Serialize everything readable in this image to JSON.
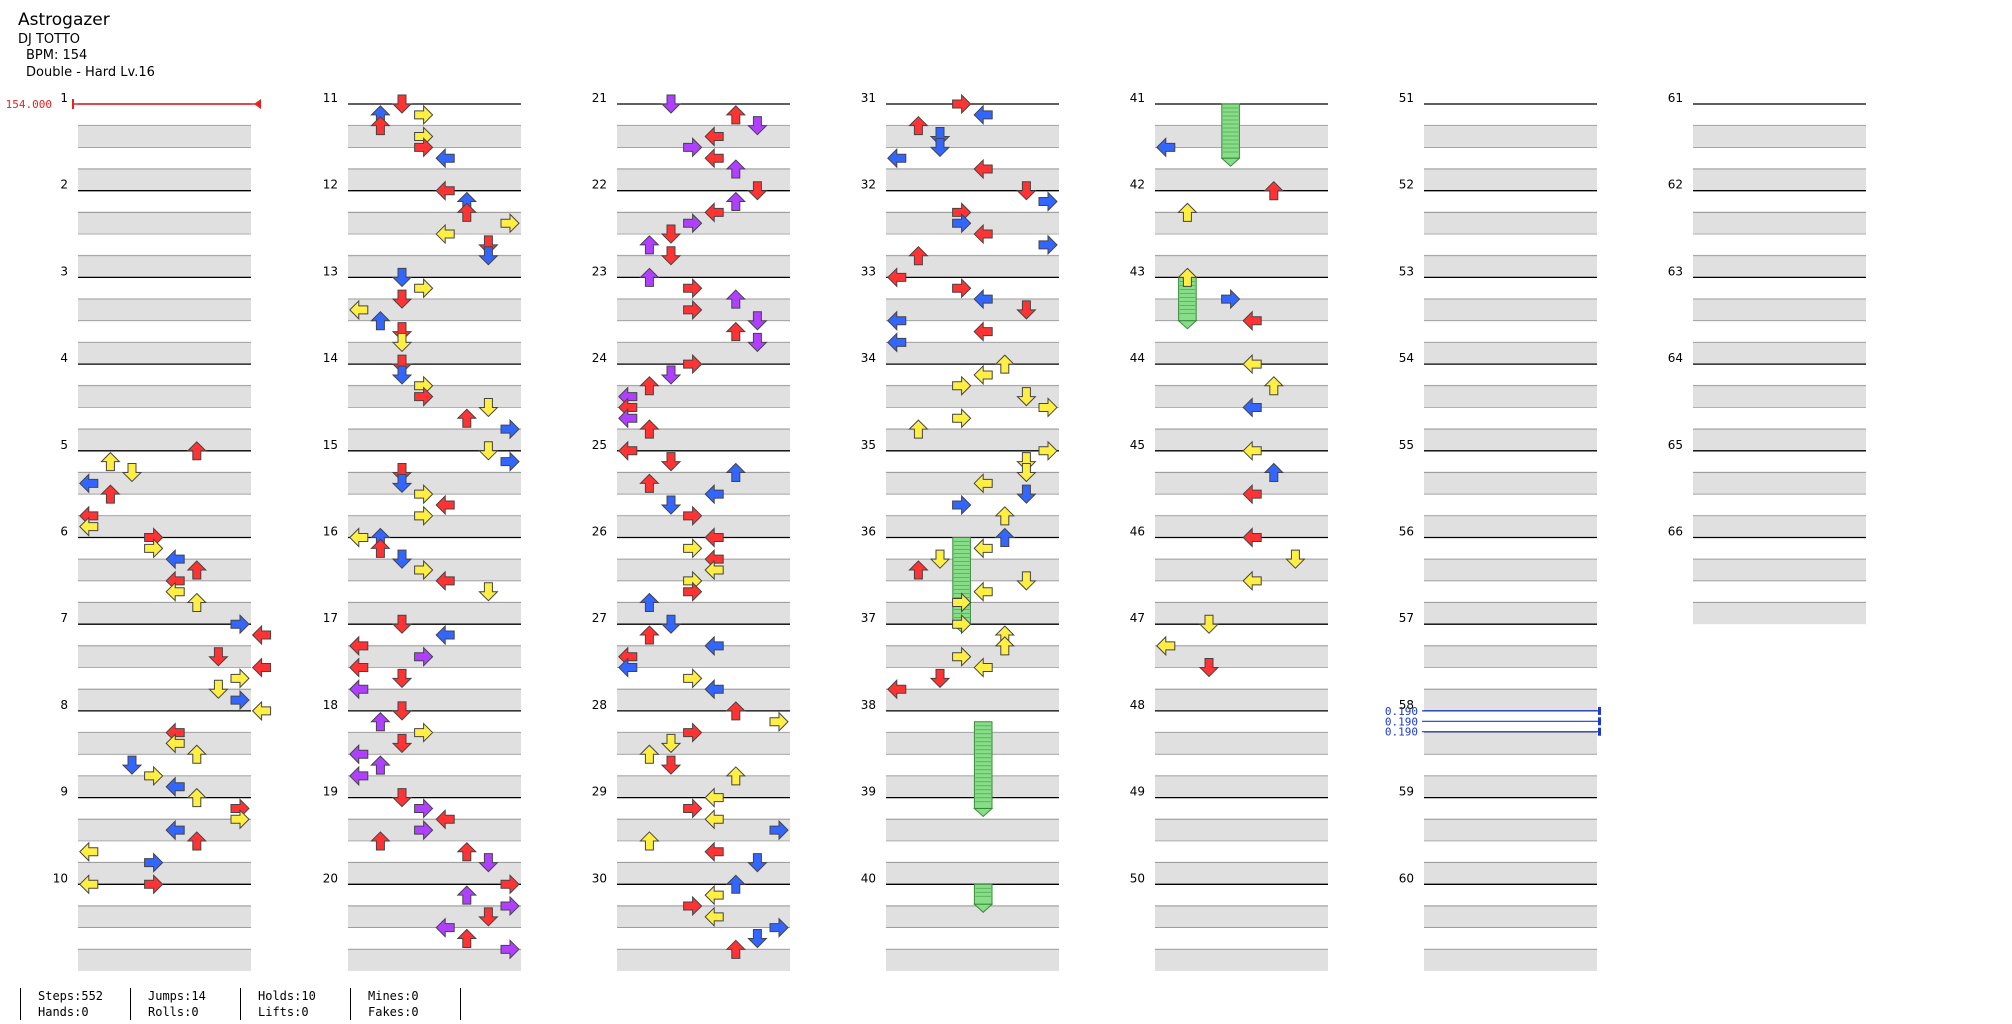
{
  "song": {
    "title": "Astrogazer",
    "artist": "DJ TOTTO",
    "bpm_label": "BPM: 154",
    "chart_label": "Double - Hard  Lv.16"
  },
  "timing": {
    "bpm_marker": "154.000",
    "scroll_values": [
      "0.190",
      "0.190",
      "0.190"
    ],
    "scroll_measure": 58
  },
  "stats": [
    {
      "top": "Steps:552",
      "bottom": "Hands:0"
    },
    {
      "top": "Jumps:14",
      "bottom": "Rolls:0"
    },
    {
      "top": "Holds:10",
      "bottom": "Lifts:0"
    },
    {
      "top": "Mines:0",
      "bottom": "Fakes:0"
    }
  ],
  "colors": {
    "quarter": "#ff3333",
    "eighth": "#3366ff",
    "twelfth": "#b040ff",
    "sixteenth": "#ffee44",
    "hold": "#88dd88",
    "lane_shade": "#e0e0e0",
    "bpm": "#e82020",
    "scroll": "#1a3ad0"
  },
  "measure_numbers": [
    1,
    2,
    3,
    4,
    5,
    6,
    7,
    8,
    9,
    10,
    11,
    12,
    13,
    14,
    15,
    16,
    17,
    18,
    19,
    20,
    21,
    22,
    23,
    24,
    25,
    26,
    27,
    28,
    29,
    30,
    31,
    32,
    33,
    34,
    35,
    36,
    37,
    38,
    39,
    40,
    41,
    42,
    43,
    44,
    45,
    46,
    47,
    48,
    49,
    50,
    51,
    52,
    53,
    54,
    55,
    56,
    57,
    58,
    59,
    60,
    61,
    62,
    63,
    64,
    65,
    66
  ],
  "notes": [
    [
      5,
      0.0,
      5,
      "R"
    ],
    [
      5,
      0.125,
      1,
      "S"
    ],
    [
      5,
      0.25,
      2,
      "S"
    ],
    [
      5,
      0.375,
      0,
      "E"
    ],
    [
      5,
      0.5,
      1,
      "R"
    ],
    [
      5,
      0.75,
      0,
      "R"
    ],
    [
      5,
      0.875,
      0,
      "S"
    ],
    [
      6,
      0.0,
      3,
      "R"
    ],
    [
      6,
      0.125,
      3,
      "S"
    ],
    [
      6,
      0.25,
      4,
      "E"
    ],
    [
      6,
      0.375,
      5,
      "R"
    ],
    [
      6,
      0.5,
      4,
      "R"
    ],
    [
      6,
      0.625,
      4,
      "S"
    ],
    [
      6,
      0.75,
      5,
      "S"
    ],
    [
      7,
      0.0,
      7,
      "E"
    ],
    [
      7,
      0.125,
      8,
      "R"
    ],
    [
      7,
      0.375,
      6,
      "R"
    ],
    [
      7,
      0.5,
      8,
      "R"
    ],
    [
      7,
      0.625,
      7,
      "S"
    ],
    [
      7,
      0.75,
      6,
      "S"
    ],
    [
      7,
      0.875,
      7,
      "E"
    ],
    [
      8,
      0.0,
      8,
      "S"
    ],
    [
      8,
      0.25,
      4,
      "R"
    ],
    [
      8,
      0.375,
      4,
      "S"
    ],
    [
      8,
      0.5,
      5,
      "S"
    ],
    [
      8,
      0.625,
      2,
      "E"
    ],
    [
      8,
      0.75,
      3,
      "S"
    ],
    [
      8,
      0.875,
      4,
      "E"
    ],
    [
      9,
      0.0,
      5,
      "S"
    ],
    [
      9,
      0.125,
      7,
      "R"
    ],
    [
      9,
      0.25,
      7,
      "S"
    ],
    [
      9,
      0.375,
      4,
      "E"
    ],
    [
      9,
      0.5,
      5,
      "R"
    ],
    [
      9,
      0.625,
      0,
      "S"
    ],
    [
      9,
      0.75,
      3,
      "E"
    ],
    [
      10,
      0.0,
      0,
      "S"
    ],
    [
      10,
      0.0,
      3,
      "R"
    ],
    [
      11,
      0.0,
      2,
      "R"
    ],
    [
      11,
      0.125,
      1,
      "E"
    ],
    [
      11,
      0.125,
      3,
      "S"
    ],
    [
      11,
      0.25,
      1,
      "R"
    ],
    [
      11,
      0.375,
      3,
      "S"
    ],
    [
      11,
      0.5,
      3,
      "R"
    ],
    [
      11,
      0.625,
      4,
      "E"
    ],
    [
      12,
      0.0,
      4,
      "R"
    ],
    [
      12,
      0.125,
      5,
      "E"
    ],
    [
      12,
      0.25,
      5,
      "R"
    ],
    [
      12,
      0.375,
      7,
      "S"
    ],
    [
      12,
      0.5,
      4,
      "S"
    ],
    [
      12,
      0.625,
      6,
      "R"
    ],
    [
      12,
      0.75,
      6,
      "E"
    ],
    [
      13,
      0.0,
      2,
      "E"
    ],
    [
      13,
      0.125,
      3,
      "S"
    ],
    [
      13,
      0.25,
      2,
      "R"
    ],
    [
      13,
      0.375,
      0,
      "S"
    ],
    [
      13,
      0.5,
      1,
      "E"
    ],
    [
      13,
      0.625,
      2,
      "R"
    ],
    [
      13,
      0.75,
      2,
      "S"
    ],
    [
      14,
      0.0,
      2,
      "R"
    ],
    [
      14,
      0.125,
      2,
      "E"
    ],
    [
      14,
      0.25,
      3,
      "S"
    ],
    [
      14,
      0.375,
      3,
      "R"
    ],
    [
      14,
      0.5,
      6,
      "S"
    ],
    [
      14,
      0.625,
      5,
      "R"
    ],
    [
      14,
      0.75,
      7,
      "E"
    ],
    [
      15,
      0.0,
      6,
      "S"
    ],
    [
      15,
      0.125,
      7,
      "E"
    ],
    [
      15,
      0.25,
      2,
      "R"
    ],
    [
      15,
      0.375,
      2,
      "E"
    ],
    [
      15,
      0.5,
      3,
      "S"
    ],
    [
      15,
      0.625,
      4,
      "R"
    ],
    [
      15,
      0.75,
      3,
      "S"
    ],
    [
      16,
      0.0,
      0,
      "S"
    ],
    [
      16,
      0.0,
      1,
      "E"
    ],
    [
      16,
      0.125,
      1,
      "R"
    ],
    [
      16,
      0.25,
      2,
      "E"
    ],
    [
      16,
      0.375,
      3,
      "S"
    ],
    [
      16,
      0.5,
      4,
      "R"
    ],
    [
      16,
      0.625,
      6,
      "S"
    ],
    [
      17,
      0.0,
      2,
      "R"
    ],
    [
      17,
      0.125,
      4,
      "E"
    ],
    [
      17,
      0.25,
      0,
      "R"
    ],
    [
      17,
      0.375,
      3,
      "T"
    ],
    [
      17,
      0.5,
      0,
      "R"
    ],
    [
      17,
      0.625,
      2,
      "R"
    ],
    [
      17,
      0.75,
      0,
      "T"
    ],
    [
      18,
      0.0,
      2,
      "R"
    ],
    [
      18,
      0.125,
      1,
      "T"
    ],
    [
      18,
      0.25,
      3,
      "S"
    ],
    [
      18,
      0.375,
      2,
      "R"
    ],
    [
      18,
      0.5,
      0,
      "T"
    ],
    [
      18,
      0.625,
      1,
      "T"
    ],
    [
      18,
      0.75,
      0,
      "T"
    ],
    [
      19,
      0.0,
      2,
      "R"
    ],
    [
      19,
      0.125,
      3,
      "T"
    ],
    [
      19,
      0.25,
      4,
      "R"
    ],
    [
      19,
      0.375,
      3,
      "T"
    ],
    [
      19,
      0.5,
      1,
      "R"
    ],
    [
      19,
      0.625,
      5,
      "R"
    ],
    [
      19,
      0.75,
      6,
      "T"
    ],
    [
      20,
      0.0,
      7,
      "R"
    ],
    [
      20,
      0.125,
      5,
      "T"
    ],
    [
      20,
      0.25,
      7,
      "T"
    ],
    [
      20,
      0.375,
      6,
      "R"
    ],
    [
      20,
      0.5,
      4,
      "T"
    ],
    [
      20,
      0.625,
      5,
      "R"
    ],
    [
      20,
      0.75,
      7,
      "T"
    ],
    [
      21,
      0.0,
      2,
      "T"
    ],
    [
      21,
      0.125,
      5,
      "R"
    ],
    [
      21,
      0.25,
      6,
      "T"
    ],
    [
      21,
      0.375,
      4,
      "R"
    ],
    [
      21,
      0.5,
      3,
      "T"
    ],
    [
      21,
      0.625,
      4,
      "R"
    ],
    [
      21,
      0.75,
      5,
      "T"
    ],
    [
      22,
      0.0,
      6,
      "R"
    ],
    [
      22,
      0.125,
      5,
      "T"
    ],
    [
      22,
      0.25,
      4,
      "R"
    ],
    [
      22,
      0.375,
      3,
      "T"
    ],
    [
      22,
      0.5,
      2,
      "R"
    ],
    [
      22,
      0.625,
      1,
      "T"
    ],
    [
      22,
      0.75,
      2,
      "R"
    ],
    [
      23,
      0.0,
      1,
      "T"
    ],
    [
      23,
      0.125,
      3,
      "R"
    ],
    [
      23,
      0.25,
      5,
      "T"
    ],
    [
      23,
      0.375,
      3,
      "R"
    ],
    [
      23,
      0.5,
      6,
      "T"
    ],
    [
      23,
      0.625,
      5,
      "R"
    ],
    [
      23,
      0.75,
      6,
      "T"
    ],
    [
      24,
      0.0,
      3,
      "R"
    ],
    [
      24,
      0.125,
      2,
      "T"
    ],
    [
      24,
      0.25,
      1,
      "R"
    ],
    [
      24,
      0.375,
      0,
      "T"
    ],
    [
      24,
      0.5,
      0,
      "R"
    ],
    [
      24,
      0.625,
      0,
      "T"
    ],
    [
      24,
      0.75,
      1,
      "R"
    ],
    [
      25,
      0.0,
      0,
      "R"
    ],
    [
      25,
      0.125,
      2,
      "R"
    ],
    [
      25,
      0.25,
      5,
      "E"
    ],
    [
      25,
      0.375,
      1,
      "R"
    ],
    [
      25,
      0.5,
      4,
      "E"
    ],
    [
      25,
      0.625,
      2,
      "E"
    ],
    [
      25,
      0.75,
      3,
      "R"
    ],
    [
      26,
      0.0,
      4,
      "R"
    ],
    [
      26,
      0.125,
      3,
      "S"
    ],
    [
      26,
      0.25,
      4,
      "R"
    ],
    [
      26,
      0.375,
      4,
      "S"
    ],
    [
      26,
      0.5,
      3,
      "S"
    ],
    [
      26,
      0.625,
      3,
      "R"
    ],
    [
      26,
      0.75,
      1,
      "E"
    ],
    [
      27,
      0.0,
      2,
      "E"
    ],
    [
      27,
      0.125,
      1,
      "R"
    ],
    [
      27,
      0.25,
      4,
      "E"
    ],
    [
      27,
      0.375,
      0,
      "R"
    ],
    [
      27,
      0.5,
      0,
      "E"
    ],
    [
      27,
      0.625,
      3,
      "S"
    ],
    [
      27,
      0.75,
      4,
      "E"
    ],
    [
      28,
      0.0,
      5,
      "R"
    ],
    [
      28,
      0.125,
      7,
      "S"
    ],
    [
      28,
      0.25,
      3,
      "R"
    ],
    [
      28,
      0.375,
      2,
      "S"
    ],
    [
      28,
      0.5,
      1,
      "S"
    ],
    [
      28,
      0.625,
      2,
      "R"
    ],
    [
      28,
      0.75,
      5,
      "S"
    ],
    [
      29,
      0.0,
      4,
      "S"
    ],
    [
      29,
      0.125,
      3,
      "R"
    ],
    [
      29,
      0.25,
      4,
      "S"
    ],
    [
      29,
      0.375,
      7,
      "E"
    ],
    [
      29,
      0.5,
      1,
      "S"
    ],
    [
      29,
      0.625,
      4,
      "R"
    ],
    [
      29,
      0.75,
      6,
      "E"
    ],
    [
      30,
      0.0,
      5,
      "E"
    ],
    [
      30,
      0.125,
      4,
      "S"
    ],
    [
      30,
      0.25,
      3,
      "R"
    ],
    [
      30,
      0.375,
      4,
      "S"
    ],
    [
      30,
      0.5,
      7,
      "E"
    ],
    [
      30,
      0.625,
      6,
      "E"
    ],
    [
      30,
      0.75,
      5,
      "R"
    ],
    [
      31,
      0.0,
      3,
      "R"
    ],
    [
      31,
      0.125,
      4,
      "E"
    ],
    [
      31,
      0.25,
      1,
      "R"
    ],
    [
      31,
      0.375,
      2,
      "E"
    ],
    [
      31,
      0.5,
      2,
      "E"
    ],
    [
      31,
      0.625,
      0,
      "E"
    ],
    [
      31,
      0.75,
      4,
      "R"
    ],
    [
      32,
      0.0,
      6,
      "R"
    ],
    [
      32,
      0.125,
      7,
      "E"
    ],
    [
      32,
      0.25,
      3,
      "R"
    ],
    [
      32,
      0.375,
      3,
      "E"
    ],
    [
      32,
      0.5,
      4,
      "R"
    ],
    [
      32,
      0.625,
      7,
      "E"
    ],
    [
      32,
      0.75,
      1,
      "R"
    ],
    [
      33,
      0.0,
      0,
      "R"
    ],
    [
      33,
      0.125,
      3,
      "R"
    ],
    [
      33,
      0.25,
      4,
      "E"
    ],
    [
      33,
      0.375,
      6,
      "R"
    ],
    [
      33,
      0.5,
      0,
      "E"
    ],
    [
      33,
      0.625,
      4,
      "R"
    ],
    [
      33,
      0.75,
      0,
      "E"
    ],
    [
      34,
      0.0,
      5,
      "S"
    ],
    [
      34,
      0.125,
      4,
      "S"
    ],
    [
      34,
      0.25,
      3,
      "S"
    ],
    [
      34,
      0.375,
      6,
      "S"
    ],
    [
      34,
      0.5,
      7,
      "S"
    ],
    [
      34,
      0.625,
      3,
      "S"
    ],
    [
      34,
      0.75,
      1,
      "S"
    ],
    [
      35,
      0.0,
      7,
      "S"
    ],
    [
      35,
      0.125,
      6,
      "S"
    ],
    [
      35,
      0.25,
      6,
      "S"
    ],
    [
      35,
      0.375,
      4,
      "S"
    ],
    [
      35,
      0.5,
      6,
      "E"
    ],
    [
      35,
      0.625,
      3,
      "E"
    ],
    [
      35,
      0.75,
      5,
      "S"
    ],
    [
      36,
      0.0,
      5,
      "E"
    ],
    [
      36,
      0.125,
      4,
      "S"
    ],
    [
      36,
      0.25,
      2,
      "S"
    ],
    [
      36,
      0.375,
      1,
      "R"
    ],
    [
      36,
      0.5,
      6,
      "S"
    ],
    [
      36,
      0.625,
      4,
      "S"
    ],
    [
      36,
      0.75,
      3,
      "S"
    ],
    [
      37,
      0.0,
      3,
      "S"
    ],
    [
      37,
      0.125,
      5,
      "S"
    ],
    [
      37,
      0.25,
      5,
      "S"
    ],
    [
      37,
      0.375,
      3,
      "S"
    ],
    [
      37,
      0.5,
      4,
      "S"
    ],
    [
      37,
      0.625,
      2,
      "R"
    ],
    [
      37,
      0.75,
      0,
      "R"
    ],
    [
      41,
      0.5,
      0,
      "E"
    ],
    [
      42,
      0.0,
      5,
      "R"
    ],
    [
      42,
      0.25,
      1,
      "S"
    ],
    [
      43,
      0.0,
      1,
      "S"
    ],
    [
      43,
      0.25,
      3,
      "E"
    ],
    [
      43,
      0.5,
      4,
      "R"
    ],
    [
      44,
      0.0,
      4,
      "S"
    ],
    [
      44,
      0.25,
      5,
      "S"
    ],
    [
      44,
      0.5,
      4,
      "E"
    ],
    [
      45,
      0.0,
      4,
      "S"
    ],
    [
      45,
      0.25,
      5,
      "E"
    ],
    [
      45,
      0.5,
      4,
      "R"
    ],
    [
      46,
      0.0,
      4,
      "R"
    ],
    [
      46,
      0.25,
      6,
      "S"
    ],
    [
      46,
      0.5,
      4,
      "S"
    ],
    [
      47,
      0.0,
      2,
      "S"
    ],
    [
      47,
      0.25,
      0,
      "S"
    ],
    [
      47,
      0.5,
      2,
      "R"
    ]
  ],
  "holds": [
    [
      41,
      0.0,
      41,
      0.625,
      3
    ],
    [
      43,
      0.0,
      43,
      0.5,
      1
    ],
    [
      36,
      0.0,
      37,
      0.0,
      3
    ],
    [
      38,
      0.125,
      39,
      0.125,
      4
    ],
    [
      40,
      0.0,
      41,
      0.0,
      4
    ]
  ]
}
